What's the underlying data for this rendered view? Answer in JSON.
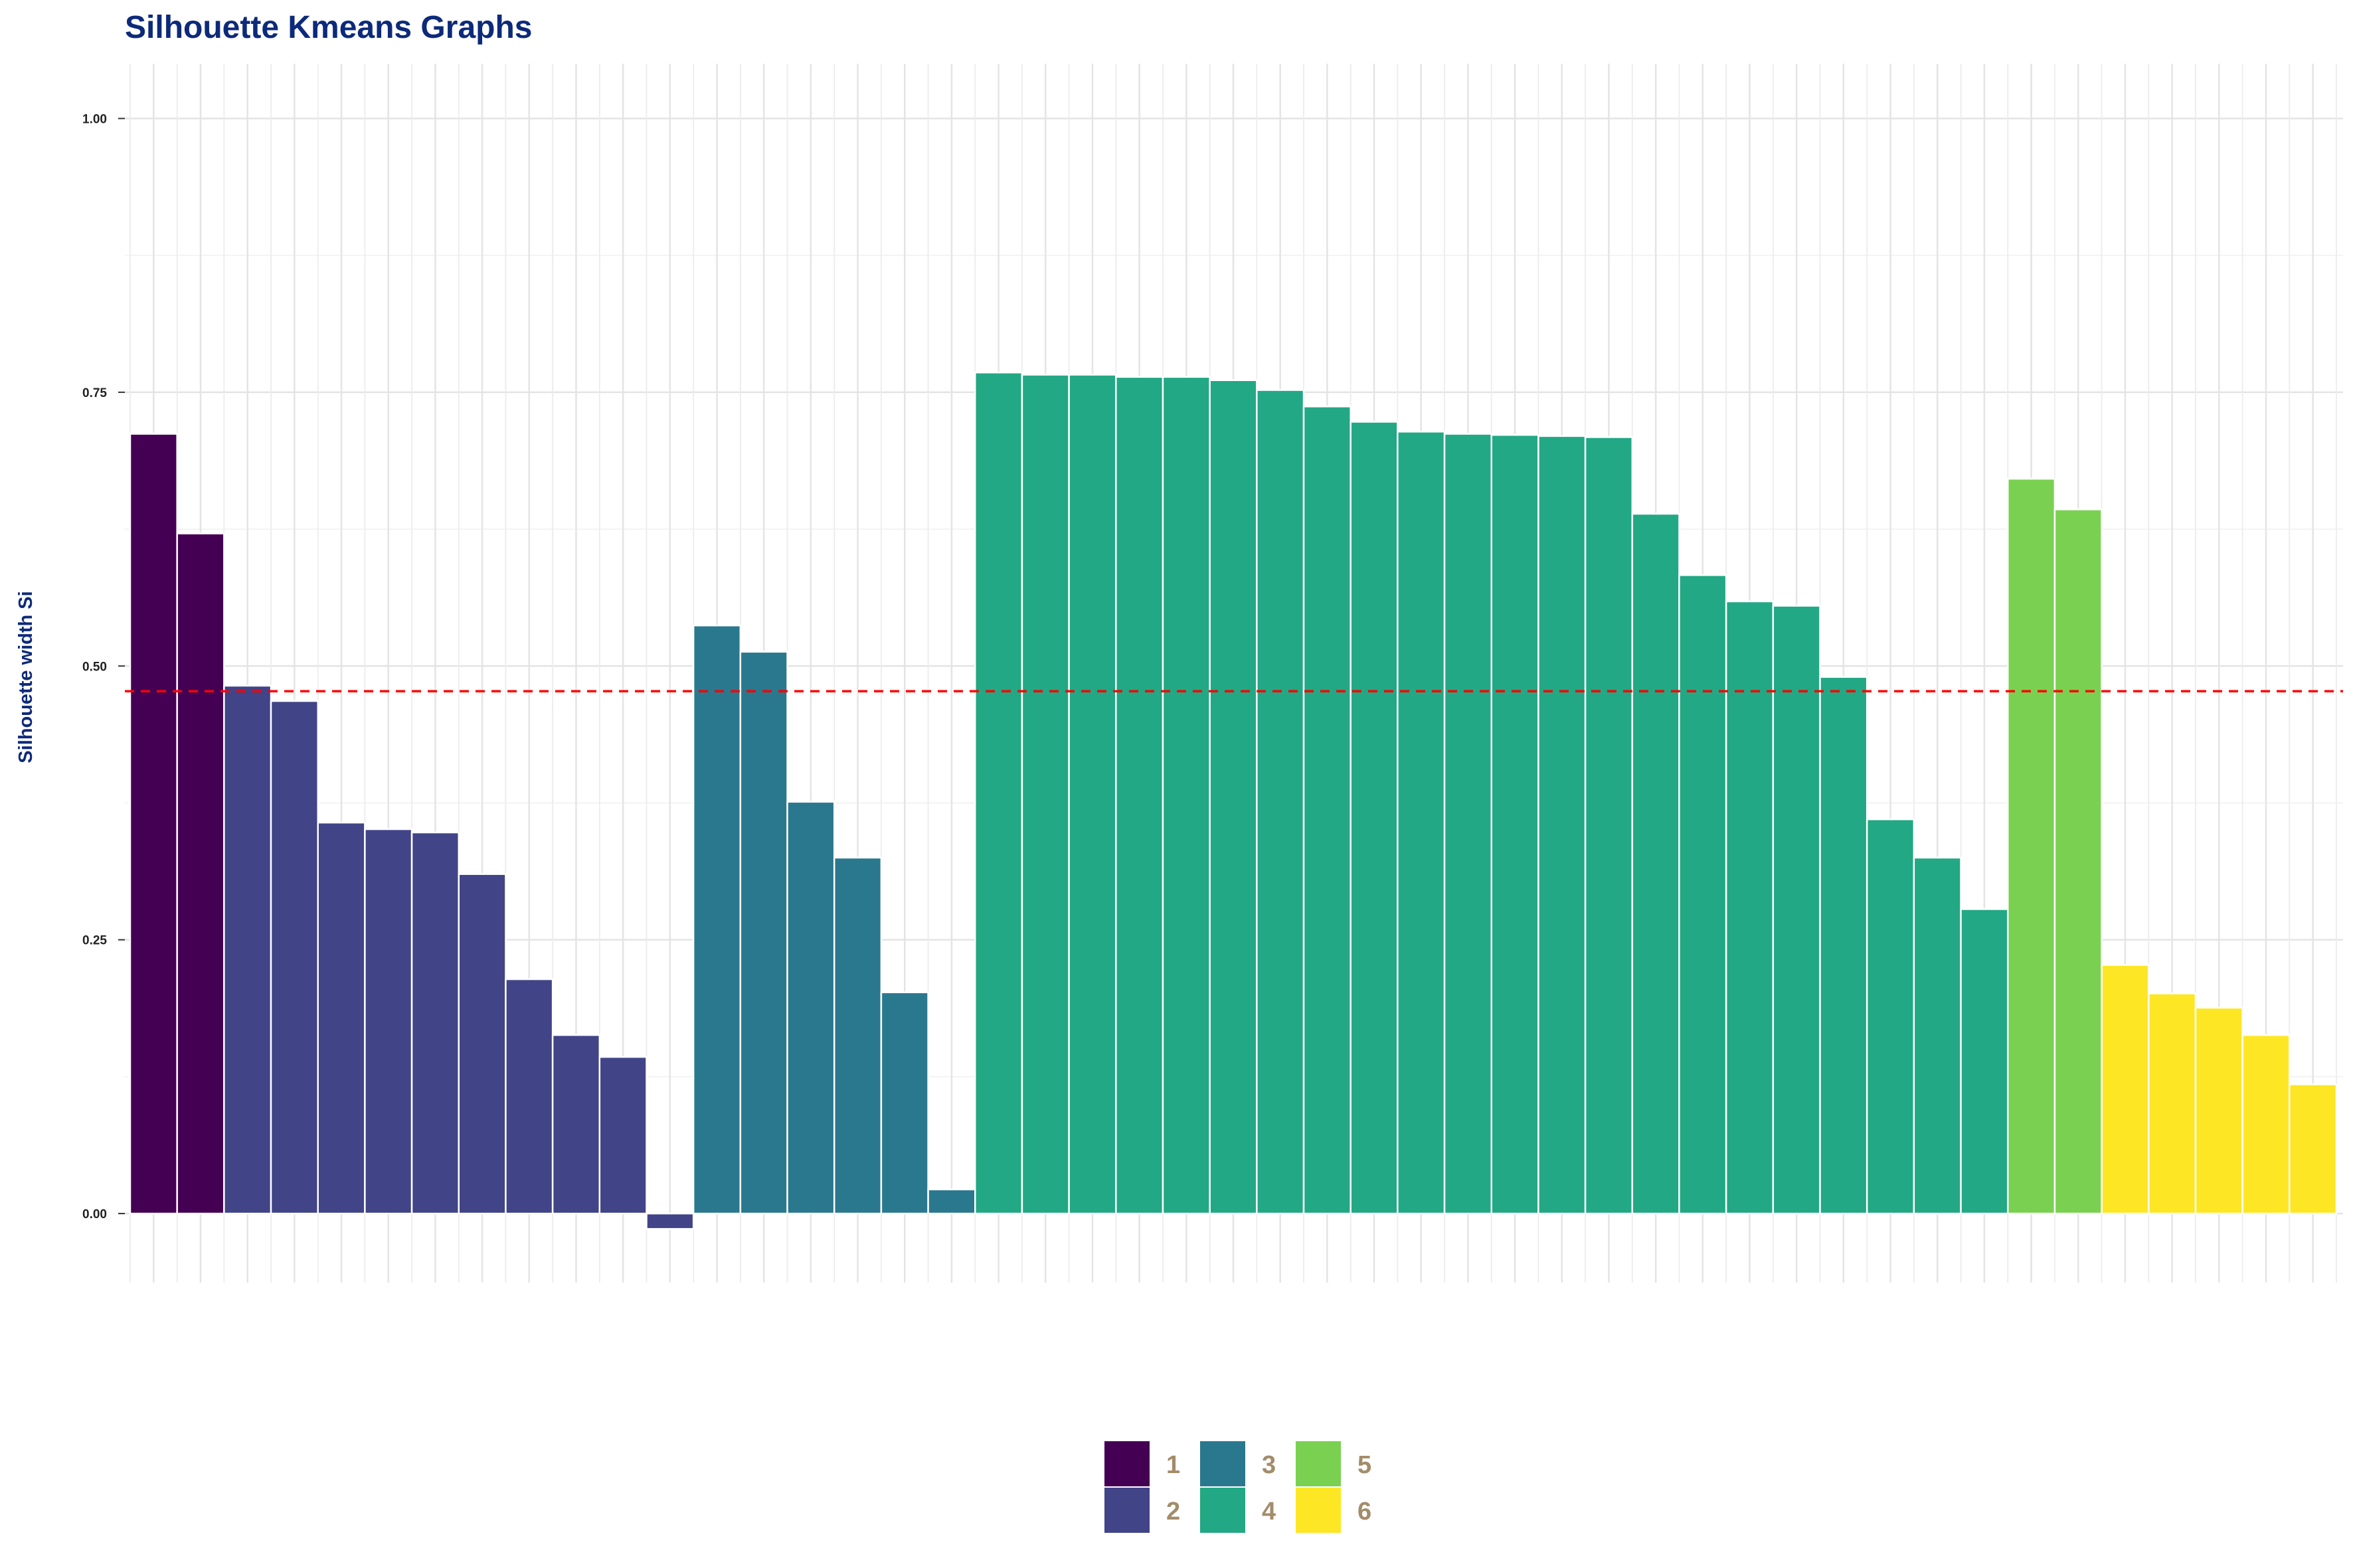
{
  "chart_data": {
    "type": "bar",
    "title": "Silhouette Kmeans Graphs",
    "xlabel": "",
    "ylabel": "Silhouette width Si",
    "ylim": [
      -0.063,
      1.05
    ],
    "yticks": [
      0.0,
      0.25,
      0.5,
      0.75,
      1.0
    ],
    "ytick_labels": [
      "0.00",
      "0.25",
      "0.50",
      "0.75",
      "1.00"
    ],
    "grid": true,
    "average_line": {
      "value": 0.477,
      "color": "#ff0000",
      "style": "dashed"
    },
    "legend_position": "bottom",
    "clusters": [
      {
        "name": "1",
        "color": "#440154",
        "values": [
          0.712,
          0.621
        ]
      },
      {
        "name": "2",
        "color": "#414487",
        "values": [
          0.482,
          0.468,
          0.357,
          0.351,
          0.348,
          0.31,
          0.214,
          0.163,
          0.143,
          -0.014
        ]
      },
      {
        "name": "3",
        "color": "#2a788e",
        "values": [
          0.537,
          0.513,
          0.376,
          0.325,
          0.202,
          0.022
        ]
      },
      {
        "name": "4",
        "color": "#22a884",
        "values": [
          0.768,
          0.766,
          0.766,
          0.764,
          0.764,
          0.761,
          0.752,
          0.737,
          0.723,
          0.714,
          0.712,
          0.711,
          0.71,
          0.709,
          0.639,
          0.583,
          0.559,
          0.555,
          0.49,
          0.36,
          0.325,
          0.278
        ]
      },
      {
        "name": "5",
        "color": "#7ad151",
        "values": [
          0.671,
          0.643
        ]
      },
      {
        "name": "6",
        "color": "#fde725",
        "values": [
          0.227,
          0.201,
          0.188,
          0.163,
          0.118
        ]
      }
    ]
  }
}
